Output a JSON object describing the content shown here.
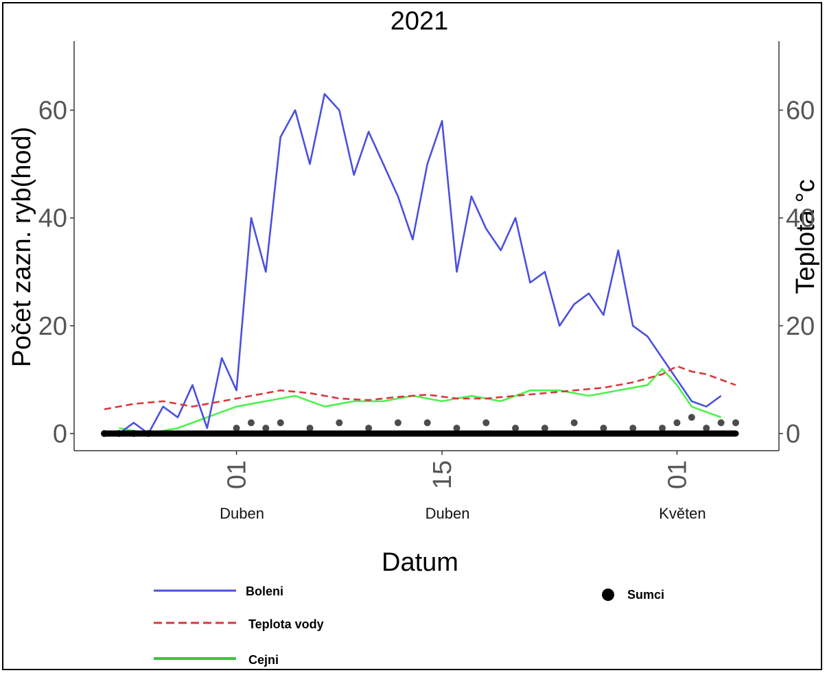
{
  "chart_data": {
    "type": "line",
    "title": "2021",
    "xlabel": "Datum",
    "ylabel_left": "Počet zazn. ryb(hod)",
    "ylabel_right": "Teplota °c",
    "ylim": [
      0,
      70
    ],
    "yticks": [
      0,
      20,
      40,
      60
    ],
    "xlim": [
      "2021-03-23",
      "2021-05-05"
    ],
    "xticks": [
      {
        "date": "2021-04-01",
        "label": "01",
        "month": "Duben"
      },
      {
        "date": "2021-04-15",
        "label": "15",
        "month": "Duben"
      },
      {
        "date": "2021-05-01",
        "label": "01",
        "month": "Květen"
      }
    ],
    "grid": false,
    "legend_position": "bottom",
    "colors": {
      "boleni": "#4a4fe0",
      "teplota": "#d9363e",
      "cejni": "#4cf24c",
      "sumci": "#000000"
    },
    "series": [
      {
        "name": "Boleni",
        "style": "solid",
        "color": "#4a4fe0",
        "points": [
          [
            "2021-03-24",
            0
          ],
          [
            "2021-03-25",
            2
          ],
          [
            "2021-03-26",
            0
          ],
          [
            "2021-03-27",
            5
          ],
          [
            "2021-03-28",
            3
          ],
          [
            "2021-03-29",
            9
          ],
          [
            "2021-03-30",
            1
          ],
          [
            "2021-03-31",
            14
          ],
          [
            "2021-04-01",
            8
          ],
          [
            "2021-04-02",
            40
          ],
          [
            "2021-04-03",
            30
          ],
          [
            "2021-04-04",
            55
          ],
          [
            "2021-04-05",
            60
          ],
          [
            "2021-04-06",
            50
          ],
          [
            "2021-04-07",
            63
          ],
          [
            "2021-04-08",
            60
          ],
          [
            "2021-04-09",
            48
          ],
          [
            "2021-04-10",
            56
          ],
          [
            "2021-04-11",
            50
          ],
          [
            "2021-04-12",
            44
          ],
          [
            "2021-04-13",
            36
          ],
          [
            "2021-04-14",
            50
          ],
          [
            "2021-04-15",
            58
          ],
          [
            "2021-04-16",
            30
          ],
          [
            "2021-04-17",
            44
          ],
          [
            "2021-04-18",
            38
          ],
          [
            "2021-04-19",
            34
          ],
          [
            "2021-04-20",
            40
          ],
          [
            "2021-04-21",
            28
          ],
          [
            "2021-04-22",
            30
          ],
          [
            "2021-04-23",
            20
          ],
          [
            "2021-04-24",
            24
          ],
          [
            "2021-04-25",
            26
          ],
          [
            "2021-04-26",
            22
          ],
          [
            "2021-04-27",
            34
          ],
          [
            "2021-04-28",
            20
          ],
          [
            "2021-04-29",
            18
          ],
          [
            "2021-04-30",
            14
          ],
          [
            "2021-05-01",
            10
          ],
          [
            "2021-05-02",
            6
          ],
          [
            "2021-05-03",
            5
          ],
          [
            "2021-05-04",
            7
          ]
        ]
      },
      {
        "name": "Teplota vody",
        "style": "dashed",
        "color": "#d9363e",
        "points": [
          [
            "2021-03-23",
            4.5
          ],
          [
            "2021-03-25",
            5.5
          ],
          [
            "2021-03-27",
            6
          ],
          [
            "2021-03-29",
            5
          ],
          [
            "2021-03-31",
            6
          ],
          [
            "2021-04-02",
            7
          ],
          [
            "2021-04-04",
            8
          ],
          [
            "2021-04-06",
            7.5
          ],
          [
            "2021-04-08",
            6.5
          ],
          [
            "2021-04-10",
            6.2
          ],
          [
            "2021-04-12",
            6.8
          ],
          [
            "2021-04-14",
            7.2
          ],
          [
            "2021-04-16",
            6.5
          ],
          [
            "2021-04-18",
            6.5
          ],
          [
            "2021-04-20",
            7
          ],
          [
            "2021-04-22",
            7.5
          ],
          [
            "2021-04-24",
            8
          ],
          [
            "2021-04-26",
            8.5
          ],
          [
            "2021-04-28",
            9.5
          ],
          [
            "2021-04-30",
            11
          ],
          [
            "2021-05-01",
            12.5
          ],
          [
            "2021-05-02",
            11.5
          ],
          [
            "2021-05-03",
            11
          ],
          [
            "2021-05-05",
            9
          ]
        ]
      },
      {
        "name": "Cejni",
        "style": "solid",
        "color": "#4cf24c",
        "points": [
          [
            "2021-03-24",
            1
          ],
          [
            "2021-03-26",
            0
          ],
          [
            "2021-03-28",
            1
          ],
          [
            "2021-03-30",
            3
          ],
          [
            "2021-04-01",
            5
          ],
          [
            "2021-04-03",
            6
          ],
          [
            "2021-04-05",
            7
          ],
          [
            "2021-04-07",
            5
          ],
          [
            "2021-04-09",
            6
          ],
          [
            "2021-04-11",
            6
          ],
          [
            "2021-04-13",
            7
          ],
          [
            "2021-04-15",
            6
          ],
          [
            "2021-04-17",
            7
          ],
          [
            "2021-04-19",
            6
          ],
          [
            "2021-04-21",
            8
          ],
          [
            "2021-04-23",
            8
          ],
          [
            "2021-04-25",
            7
          ],
          [
            "2021-04-27",
            8
          ],
          [
            "2021-04-29",
            9
          ],
          [
            "2021-04-30",
            12
          ],
          [
            "2021-05-01",
            9
          ],
          [
            "2021-05-02",
            5
          ],
          [
            "2021-05-03",
            4
          ],
          [
            "2021-05-04",
            3
          ]
        ]
      },
      {
        "name": "Sumci",
        "style": "points",
        "color": "#000000",
        "points": [
          [
            "2021-03-23",
            0
          ],
          [
            "2021-03-24",
            0
          ],
          [
            "2021-03-25",
            0
          ],
          [
            "2021-03-26",
            0
          ],
          [
            "2021-04-01",
            1
          ],
          [
            "2021-04-02",
            2
          ],
          [
            "2021-04-03",
            1
          ],
          [
            "2021-04-04",
            2
          ],
          [
            "2021-04-06",
            1
          ],
          [
            "2021-04-08",
            2
          ],
          [
            "2021-04-10",
            1
          ],
          [
            "2021-04-12",
            2
          ],
          [
            "2021-04-14",
            2
          ],
          [
            "2021-04-16",
            1
          ],
          [
            "2021-04-18",
            2
          ],
          [
            "2021-04-20",
            1
          ],
          [
            "2021-04-22",
            1
          ],
          [
            "2021-04-24",
            2
          ],
          [
            "2021-04-26",
            1
          ],
          [
            "2021-04-28",
            1
          ],
          [
            "2021-04-30",
            1
          ],
          [
            "2021-05-01",
            2
          ],
          [
            "2021-05-02",
            3
          ],
          [
            "2021-05-03",
            1
          ],
          [
            "2021-05-04",
            2
          ],
          [
            "2021-05-05",
            2
          ]
        ]
      }
    ],
    "legend": [
      {
        "label": "Boleni",
        "series": "Boleni",
        "style": "solid",
        "color": "#4a4fe0"
      },
      {
        "label": "Teplota vody",
        "series": "Teplota vody",
        "style": "dashed",
        "color": "#d9363e"
      },
      {
        "label": "Cejni",
        "series": "Cejni",
        "style": "solid",
        "color": "#3cc43c"
      },
      {
        "label": "Sumci",
        "series": "Sumci",
        "style": "points",
        "color": "#000000"
      }
    ]
  }
}
